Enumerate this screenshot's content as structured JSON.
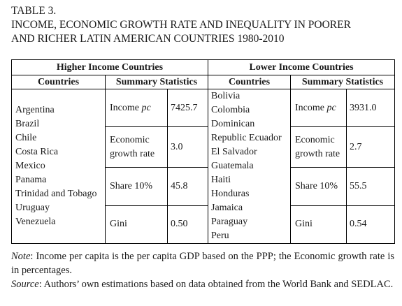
{
  "caption": {
    "label": "TABLE 3.",
    "title_line1": "INCOME, ECONOMIC GROWTH RATE AND INEQUALITY IN POORER",
    "title_line2": "AND RICHER LATIN AMERICAN COUNTRIES 1980-2010"
  },
  "table": {
    "group_high": "Higher Income Countries",
    "group_low": "Lower Income Countries",
    "col_countries": "Countries",
    "col_summary": "Summary Statistics",
    "high_countries": [
      "Argentina",
      "Brazil",
      "Chile",
      "Costa Rica",
      "Mexico",
      "Panama",
      "Trinidad and Tobago",
      "Uruguay",
      "Venezuela"
    ],
    "low_countries": [
      "Bolivia",
      "Colombia",
      "Dominican",
      "Republic Ecuador",
      "El Salvador",
      "Guatemala",
      "Haiti",
      "Honduras",
      "Jamaica",
      "Paraguay",
      "Peru"
    ],
    "stats": {
      "income_label": "Income ",
      "income_label_italic": "pc",
      "growth_line1": "Economic",
      "growth_line2": "growth rate",
      "share_label": "Share 10%",
      "gini_label": "Gini"
    },
    "high_values": {
      "income": "7425.7",
      "growth": "3.0",
      "share": "45.8",
      "gini": "0.50"
    },
    "low_values": {
      "income": "3931.0",
      "growth": "2.7",
      "share": "55.5",
      "gini": "0.54"
    }
  },
  "notes": {
    "note_label": "Note",
    "note_text": ": Income per capita is the per capita GDP based on the PPP; the Economic growth rate is in percentages.",
    "source_label": "Source",
    "source_text": ": Authors’ own estimations based on data obtained from the World Bank and SEDLAC."
  }
}
